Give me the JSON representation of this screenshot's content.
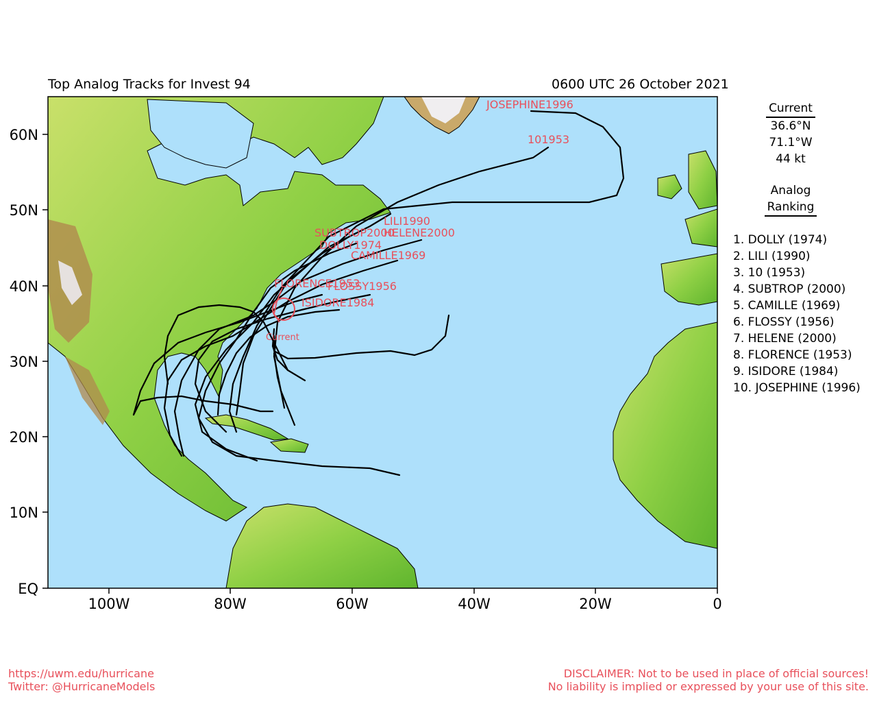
{
  "header": {
    "title": "Top Analog Tracks for Invest 94",
    "datetime": "0600 UTC 26 October 2021"
  },
  "axes": {
    "lat_labels": [
      "60N",
      "50N",
      "40N",
      "30N",
      "20N",
      "10N",
      "EQ"
    ],
    "lon_labels": [
      "100W",
      "80W",
      "60W",
      "40W",
      "20W",
      "0"
    ]
  },
  "current": {
    "heading": "Current",
    "lat": "36.6°N",
    "lon": "71.1°W",
    "wind": "44 kt",
    "map_label": "Current"
  },
  "ranking": {
    "heading_line1": "Analog",
    "heading_line2": "Ranking",
    "items": [
      "1.  DOLLY (1974)",
      "2.  LILI (1990)",
      "3.  10 (1953)",
      "4.  SUBTROP (2000)",
      "5.  CAMILLE (1969)",
      "6.  FLOSSY (1956)",
      "7.  HELENE (2000)",
      "8.  FLORENCE (1953)",
      "9.  ISIDORE (1984)",
      "10. JOSEPHINE (1996)"
    ]
  },
  "track_labels": {
    "josephine": "JOSEPHINE1996",
    "ten": "101953",
    "lili": "LILI1990",
    "subtrop": "SUBTROP2000",
    "helene": "HELENE2000",
    "dolly": "DOLLY1974",
    "camille": "CAMILLE1969",
    "florence": "FLORENCE1953",
    "flossy": "FLOSSY1956",
    "isidore": "ISIDORE1984"
  },
  "colors": {
    "ocean": "#aee0fb",
    "land_low": "#6cc234",
    "land_mid": "#c9e06a",
    "land_high": "#b08a4e",
    "tracks": "#000000",
    "labels": "#e8505b"
  },
  "footer": {
    "url": "https://uwm.edu/hurricane",
    "twitter": "Twitter: @HurricaneModels",
    "disclaimer1": "DISCLAIMER: Not to be used in place of official sources!",
    "disclaimer2": "No liability is implied or expressed by your use of this site."
  }
}
